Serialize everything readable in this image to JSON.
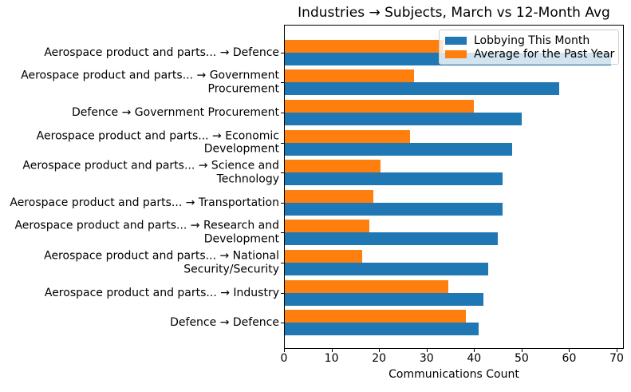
{
  "chart_data": {
    "type": "bar",
    "orientation": "horizontal",
    "title": "Industries → Subjects, March vs 12-Month Avg",
    "xlabel": "Communications Count",
    "xlim": [
      0,
      71.5
    ],
    "xticks": [
      0,
      10,
      20,
      30,
      40,
      50,
      60,
      70
    ],
    "grid": false,
    "legend_position": "upper right",
    "categories": [
      "Aerospace product and parts... → Defence",
      "Aerospace product and parts... → Government Procurement",
      "Defence → Government Procurement",
      "Aerospace product and parts... → Economic Development",
      "Aerospace product and parts... → Science and Technology",
      "Aerospace product and parts... → Transportation",
      "Aerospace product and parts... → Research and Development",
      "Aerospace product and parts... → National Security/Security",
      "Aerospace product and parts... → Industry",
      "Defence → Defence"
    ],
    "category_label_lines": [
      [
        "Aerospace product and parts... → Defence"
      ],
      [
        "Aerospace product and parts... → Government",
        "Procurement"
      ],
      [
        "Defence → Government Procurement"
      ],
      [
        "Aerospace product and parts... → Economic",
        "Development"
      ],
      [
        "Aerospace product and parts... → Science and",
        "Technology"
      ],
      [
        "Aerospace product and parts... → Transportation"
      ],
      [
        "Aerospace product and parts... → Research and",
        "Development"
      ],
      [
        "Aerospace product and parts... → National",
        "Security/Security"
      ],
      [
        "Aerospace product and parts... → Industry"
      ],
      [
        "Defence → Defence"
      ]
    ],
    "series": [
      {
        "name": "Lobbying This Month",
        "color": "#1f77b4",
        "values": [
          69,
          58,
          50,
          48,
          46,
          46,
          45,
          43,
          42,
          41
        ]
      },
      {
        "name": "Average for the Past Year",
        "color": "#ff7f0e",
        "values": [
          33.6,
          27.3,
          40.0,
          26.5,
          20.2,
          18.8,
          17.8,
          16.3,
          34.6,
          38.3
        ]
      }
    ]
  }
}
